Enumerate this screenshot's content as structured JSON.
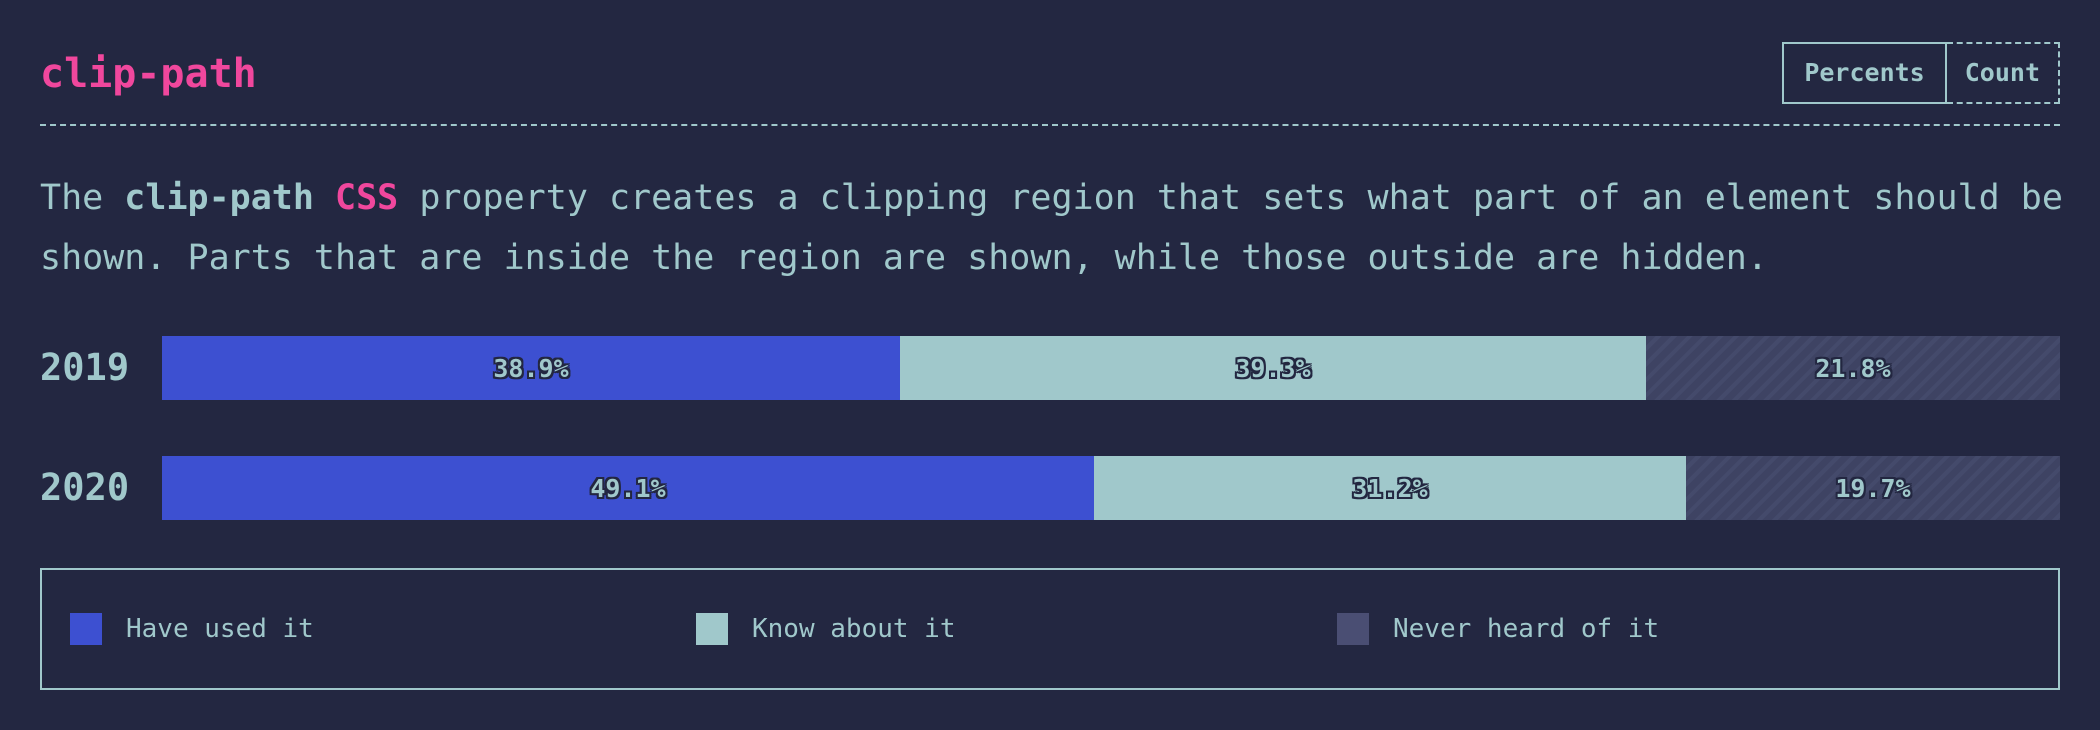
{
  "header": {
    "title": "clip-path",
    "toggle": {
      "percents_label": "Percents",
      "count_label": "Count",
      "active": "percents"
    }
  },
  "description": {
    "prefix": "The ",
    "property": "clip-path",
    "space": " ",
    "css": "CSS",
    "suffix": " property creates a clipping region that sets what part of an element should be shown. Parts that are inside the region are shown, while those outside are hidden."
  },
  "colors": {
    "background": "#232741",
    "accent": "#f0479d",
    "text": "#a0c8cb",
    "have_used": "#3d50d1",
    "know_about": "#a0c8cb",
    "never_heard": "#3e4363"
  },
  "legend": {
    "items": [
      {
        "label": "Have used it",
        "color": "#3d50d1"
      },
      {
        "label": "Know about it",
        "color": "#a0c8cb"
      },
      {
        "label": "Never heard of it",
        "color": "#4a4e73"
      }
    ]
  },
  "chart_data": {
    "type": "bar",
    "orientation": "horizontal",
    "stacked": true,
    "normalized": true,
    "categories": [
      "2019",
      "2020"
    ],
    "series": [
      {
        "name": "Have used it",
        "values": [
          38.9,
          49.1
        ],
        "labels": [
          "38.9%",
          "49.1%"
        ],
        "color": "#3d50d1"
      },
      {
        "name": "Know about it",
        "values": [
          39.3,
          31.2
        ],
        "labels": [
          "39.3%",
          "31.2%"
        ],
        "color": "#a0c8cb"
      },
      {
        "name": "Never heard of it",
        "values": [
          21.8,
          19.7
        ],
        "labels": [
          "21.8%",
          "19.7%"
        ],
        "color": "#3e4363"
      }
    ],
    "title": "",
    "xlabel": "",
    "ylabel": "",
    "legend_position": "bottom"
  }
}
